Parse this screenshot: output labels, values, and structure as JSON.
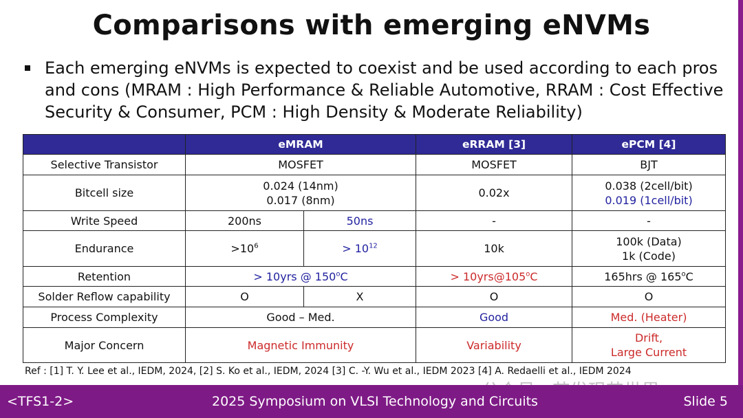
{
  "title": "Comparisons with emerging eNVMs",
  "bullet": "Each emerging eNVMs is expected to coexist and be used according to each pros and cons (MRAM : High Performance & Reliable Automotive, RRAM : Cost Effective  Security & Consumer, PCM : High Density & Moderate Reliability)",
  "table": {
    "headers": [
      "",
      "eMRAM",
      "eRRAM [3]",
      "ePCM [4]"
    ],
    "rows": {
      "selective": {
        "label": "Selective Transistor",
        "emram": "MOSFET",
        "erram": "MOSFET",
        "epcm": "BJT"
      },
      "bitcell": {
        "label": "Bitcell size",
        "emram1": "0.024 (14nm)",
        "emram2": "0.017 (8nm)",
        "erram": "0.02x",
        "epcm1": "0.038 (2cell/bit)",
        "epcm2": "0.019 (1cell/bit)"
      },
      "write": {
        "label": "Write Speed",
        "emram_a": "200ns",
        "emram_b": "50ns",
        "erram": "-",
        "epcm": "-"
      },
      "endurance": {
        "label": "Endurance",
        "emram_a": ">10",
        "emram_a_exp": "6",
        "emram_b": "> 10",
        "emram_b_exp": "12",
        "erram": "10k",
        "epcm1": "100k (Data)",
        "epcm2": "1k (Code)"
      },
      "retention": {
        "label": "Retention",
        "emram": "> 10yrs @ 150",
        "emram_sup": "o",
        "emram_unit": "C",
        "erram": "> 10yrs@105",
        "erram_sup": "o",
        "erram_unit": "C",
        "epcm": "165hrs @ 165",
        "epcm_sup": "o",
        "epcm_unit": "C"
      },
      "solder": {
        "label": "Solder Reflow capability",
        "emram_a": "O",
        "emram_b": "X",
        "erram": "O",
        "epcm": "O"
      },
      "process": {
        "label": "Process Complexity",
        "emram": "Good – Med.",
        "erram": "Good",
        "epcm": "Med. (Heater)"
      },
      "concern": {
        "label": "Major Concern",
        "emram": "Magnetic Immunity",
        "erram": "Variability",
        "epcm1": "Drift,",
        "epcm2": "Large Current"
      }
    }
  },
  "ref": "Ref : [1] T. Y. Lee et al., IEDM, 2024, [2] S. Ko et al., IEDM, 2024 [3] C. -Y. Wu et al., IEDM 2023 [4] A. Redaelli et al., IEDM 2024",
  "watermark": "公众号 · 芯发现芯世界",
  "footer": {
    "left": "<TFS1-2>",
    "center": "2025 Symposium on VLSI Technology and Circuits",
    "right": "Slide 5"
  },
  "colors": {
    "header": "#2f2a96",
    "footer": "#7e1a86",
    "blue": "#2222a0",
    "red": "#cc2a2a"
  }
}
